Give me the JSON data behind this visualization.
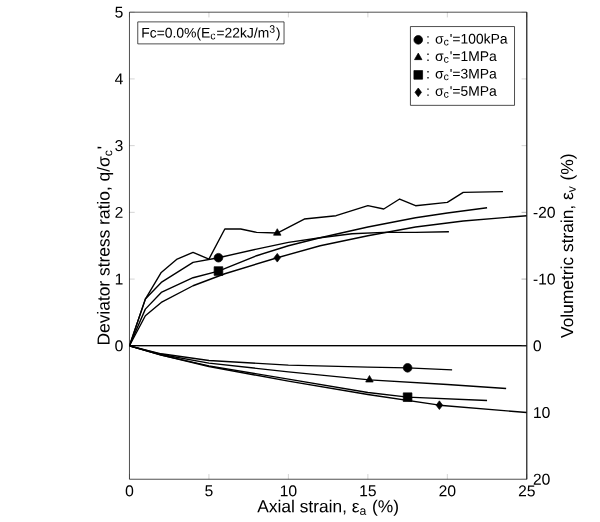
{
  "chart_data": {
    "type": "line",
    "xlabel": "Axial strain, ε$_{a}$ (%)",
    "ylabel": "Deviator stress ratio, q/σ$_{c}$'",
    "y2label": "Volumetric strain, ε$_{v}$ (%)",
    "annotations": [
      "Fc=0.0%(E$_{c}$=22kJ/m$^{3}$)"
    ],
    "xlim": [
      0,
      25
    ],
    "xticks": [
      0,
      5,
      10,
      15,
      20,
      25
    ],
    "ylim": [
      -2,
      5
    ],
    "yticks": [
      0,
      1,
      2,
      3,
      4,
      5
    ],
    "y2lim": [
      20,
      -50
    ],
    "y2ticks": [
      -20,
      -10,
      0,
      10,
      20
    ],
    "legend": "top right",
    "ref_lines": [
      {
        "axis": "y",
        "value": 0
      }
    ],
    "series": [
      {
        "type": "scatter",
        "name": ": σ$_{c}$'=100kPa",
        "marker": "circle",
        "color": "#000000",
        "x": [
          5.6
        ],
        "values": [
          1.32
        ]
      },
      {
        "type": "scatter",
        "name": ": σ$_{c}$'=1MPa",
        "marker": "triangle",
        "color": "#000000",
        "x": [
          9.3
        ],
        "values": [
          1.69
        ]
      },
      {
        "type": "scatter",
        "name": ": σ$_{c}$'=3MPa",
        "marker": "square",
        "color": "#000000",
        "x": [
          5.6
        ],
        "values": [
          1.12
        ]
      },
      {
        "type": "scatter",
        "name": ": σ$_{c}$'=5MPa",
        "marker": "diamond",
        "color": "#000000",
        "x": [
          9.3
        ],
        "values": [
          1.32
        ]
      },
      {
        "type": "line",
        "color": "#000000",
        "x": [
          0,
          1,
          2,
          3,
          4,
          5.6,
          8,
          10,
          12,
          14,
          16,
          18,
          20.1
        ],
        "values": [
          0,
          0.7,
          0.95,
          1.1,
          1.25,
          1.32,
          1.45,
          1.55,
          1.62,
          1.68,
          1.7,
          1.7,
          1.71
        ]
      },
      {
        "type": "line",
        "color": "#000000",
        "x": [
          0,
          1,
          2,
          3,
          4,
          5,
          6,
          7,
          8,
          9.3,
          11,
          13,
          15,
          16,
          17,
          18,
          20,
          21,
          23.5
        ],
        "values": [
          0,
          0.7,
          1.1,
          1.3,
          1.4,
          1.3,
          1.75,
          1.75,
          1.7,
          1.69,
          1.9,
          1.95,
          2.1,
          2.05,
          2.2,
          2.1,
          2.15,
          2.3,
          2.31
        ]
      },
      {
        "type": "line",
        "color": "#000000",
        "x": [
          0,
          1,
          2,
          4,
          5.6,
          8,
          10,
          12,
          15,
          18,
          20,
          22.5
        ],
        "values": [
          0,
          0.55,
          0.8,
          1.02,
          1.12,
          1.35,
          1.5,
          1.62,
          1.78,
          1.92,
          1.99,
          2.07
        ]
      },
      {
        "type": "line",
        "color": "#000000",
        "x": [
          0,
          1,
          2,
          4,
          6,
          9.3,
          12,
          15,
          18,
          21,
          25
        ],
        "values": [
          0,
          0.45,
          0.65,
          0.9,
          1.08,
          1.32,
          1.5,
          1.65,
          1.78,
          1.87,
          1.95
        ]
      },
      {
        "type": "line",
        "axis": "y2",
        "color": "#000000",
        "x": [
          0,
          2,
          5,
          10,
          15,
          17.5,
          20.3
        ],
        "values": [
          0,
          1.2,
          2.2,
          2.9,
          3.2,
          3.3,
          3.6
        ]
      },
      {
        "type": "line",
        "axis": "y2",
        "color": "#000000",
        "x": [
          0,
          2,
          5,
          10,
          15.1,
          20,
          23.7
        ],
        "values": [
          0,
          1.3,
          2.6,
          3.9,
          5.1,
          5.8,
          6.4
        ]
      },
      {
        "type": "line",
        "axis": "y2",
        "color": "#000000",
        "x": [
          0,
          2,
          5,
          10,
          15,
          17.5,
          22.5
        ],
        "values": [
          0,
          1.4,
          3,
          5,
          7,
          7.7,
          8.2
        ]
      },
      {
        "type": "line",
        "axis": "y2",
        "color": "#000000",
        "x": [
          0,
          2,
          5,
          10,
          15,
          19.5,
          25
        ],
        "values": [
          0,
          1.4,
          3.1,
          5.3,
          7.3,
          8.9,
          10
        ]
      },
      {
        "type": "scatter",
        "axis": "y2",
        "marker": "circle",
        "color": "#000000",
        "x": [
          17.5
        ],
        "values": [
          3.3
        ]
      },
      {
        "type": "scatter",
        "axis": "y2",
        "marker": "triangle",
        "color": "#000000",
        "x": [
          15.1
        ],
        "values": [
          5.1
        ]
      },
      {
        "type": "scatter",
        "axis": "y2",
        "marker": "square",
        "color": "#000000",
        "x": [
          17.5
        ],
        "values": [
          7.7
        ]
      },
      {
        "type": "scatter",
        "axis": "y2",
        "marker": "diamond",
        "color": "#000000",
        "x": [
          19.5
        ],
        "values": [
          8.9
        ]
      }
    ]
  }
}
